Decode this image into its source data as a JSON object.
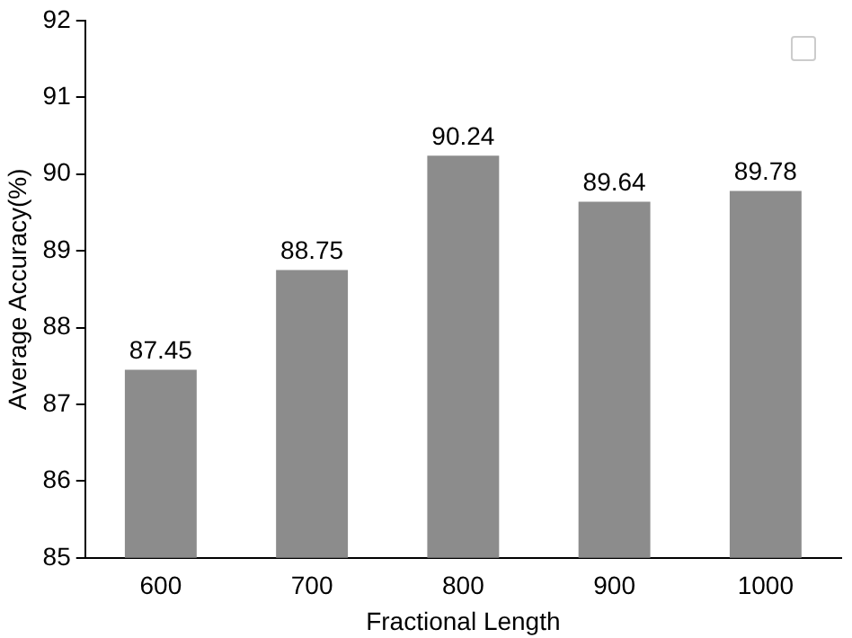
{
  "chart_data": {
    "type": "bar",
    "xlabel": "Fractional Length",
    "ylabel": "Average Accuracy(%)",
    "categories": [
      "600",
      "700",
      "800",
      "900",
      "1000"
    ],
    "values": [
      87.45,
      88.75,
      90.24,
      89.64,
      89.78
    ],
    "color": "#8c8c8c",
    "ylim": [
      85,
      92
    ],
    "yticks": [
      85,
      86,
      87,
      88,
      89,
      90,
      91,
      92
    ],
    "data_labels": true
  }
}
